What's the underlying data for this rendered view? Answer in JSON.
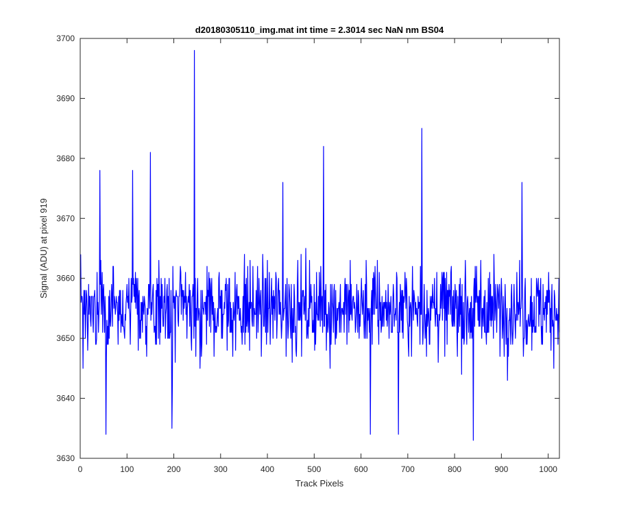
{
  "chart_data": {
    "type": "line",
    "title": "d20180305110_img.mat int time = 2.3014 sec  NaN nm BS04",
    "xlabel": "Track Pixels",
    "ylabel": "Signal (ADU) at pixel 919",
    "xlim": [
      0,
      1024
    ],
    "ylim": [
      3630,
      3700
    ],
    "xticks": [
      0,
      100,
      200,
      300,
      400,
      500,
      600,
      700,
      800,
      900,
      1000
    ],
    "yticks": [
      3630,
      3640,
      3650,
      3660,
      3670,
      3680,
      3690,
      3700
    ],
    "grid": false,
    "line_color": "#0000ff",
    "noise_band": {
      "typical_low": 3644,
      "typical_high": 3666,
      "center": 3655
    },
    "peaks": [
      {
        "x": 42,
        "y": 3678
      },
      {
        "x": 55,
        "y": 3634
      },
      {
        "x": 112,
        "y": 3678
      },
      {
        "x": 150,
        "y": 3681
      },
      {
        "x": 196,
        "y": 3635
      },
      {
        "x": 244,
        "y": 3698
      },
      {
        "x": 433,
        "y": 3676
      },
      {
        "x": 520,
        "y": 3682
      },
      {
        "x": 620,
        "y": 3634
      },
      {
        "x": 680,
        "y": 3634
      },
      {
        "x": 730,
        "y": 3685
      },
      {
        "x": 840,
        "y": 3633
      },
      {
        "x": 944,
        "y": 3676
      }
    ]
  }
}
